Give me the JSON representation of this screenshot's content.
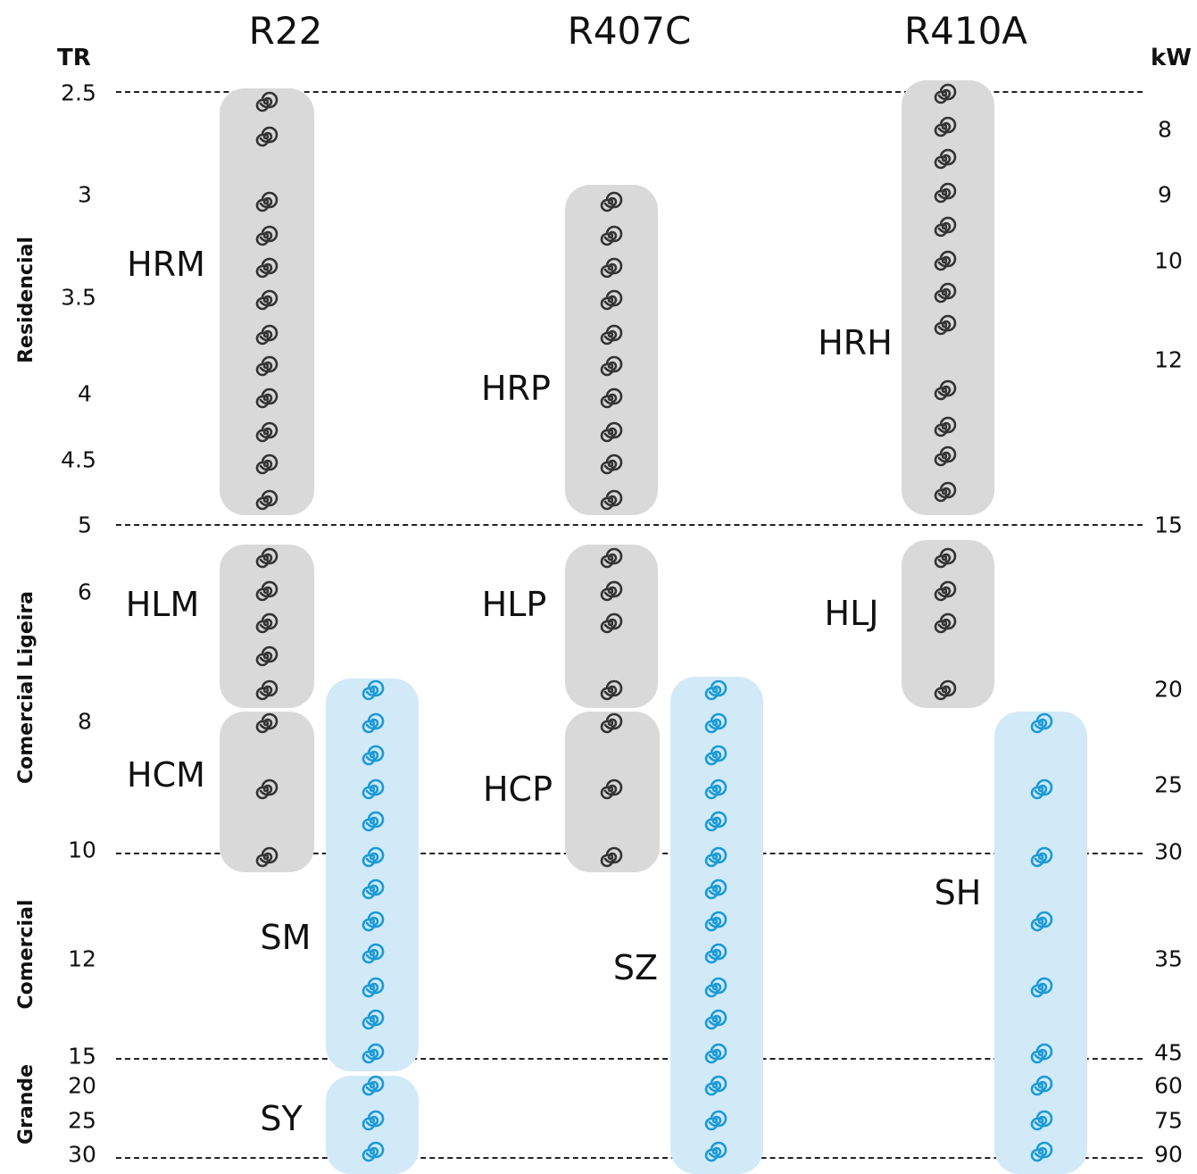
{
  "refrigerants": [
    "R22",
    "R407C",
    "R410A"
  ],
  "left_unit": "TR",
  "right_unit": "kW",
  "left_ticks": [
    "2.5",
    "3",
    "3.5",
    "4",
    "4.5",
    "5",
    "6",
    "8",
    "10",
    "12",
    "15",
    "20",
    "25",
    "30"
  ],
  "right_ticks": [
    "8",
    "9",
    "10",
    "12",
    "15",
    "20",
    "25",
    "30",
    "35",
    "45",
    "60",
    "75",
    "90"
  ],
  "segments": [
    "Residencial",
    "Comercial Ligeira",
    "Comercial",
    "Grande"
  ],
  "families": {
    "HRM": "HRM",
    "HLM": "HLM",
    "HCM": "HCM",
    "SM": "SM",
    "SY": "SY",
    "HRP": "HRP",
    "HLP": "HLP",
    "HCP": "HCP",
    "SZ": "SZ",
    "HRH": "HRH",
    "HLJ": "HLJ",
    "SH": "SH"
  },
  "colors": {
    "gray_box": "#d9d9d9",
    "blue_box": "#d2e9f8",
    "gray_icon": "#333333",
    "blue_icon": "#1a9ad6"
  },
  "icon": "scroll-compressor-icon"
}
